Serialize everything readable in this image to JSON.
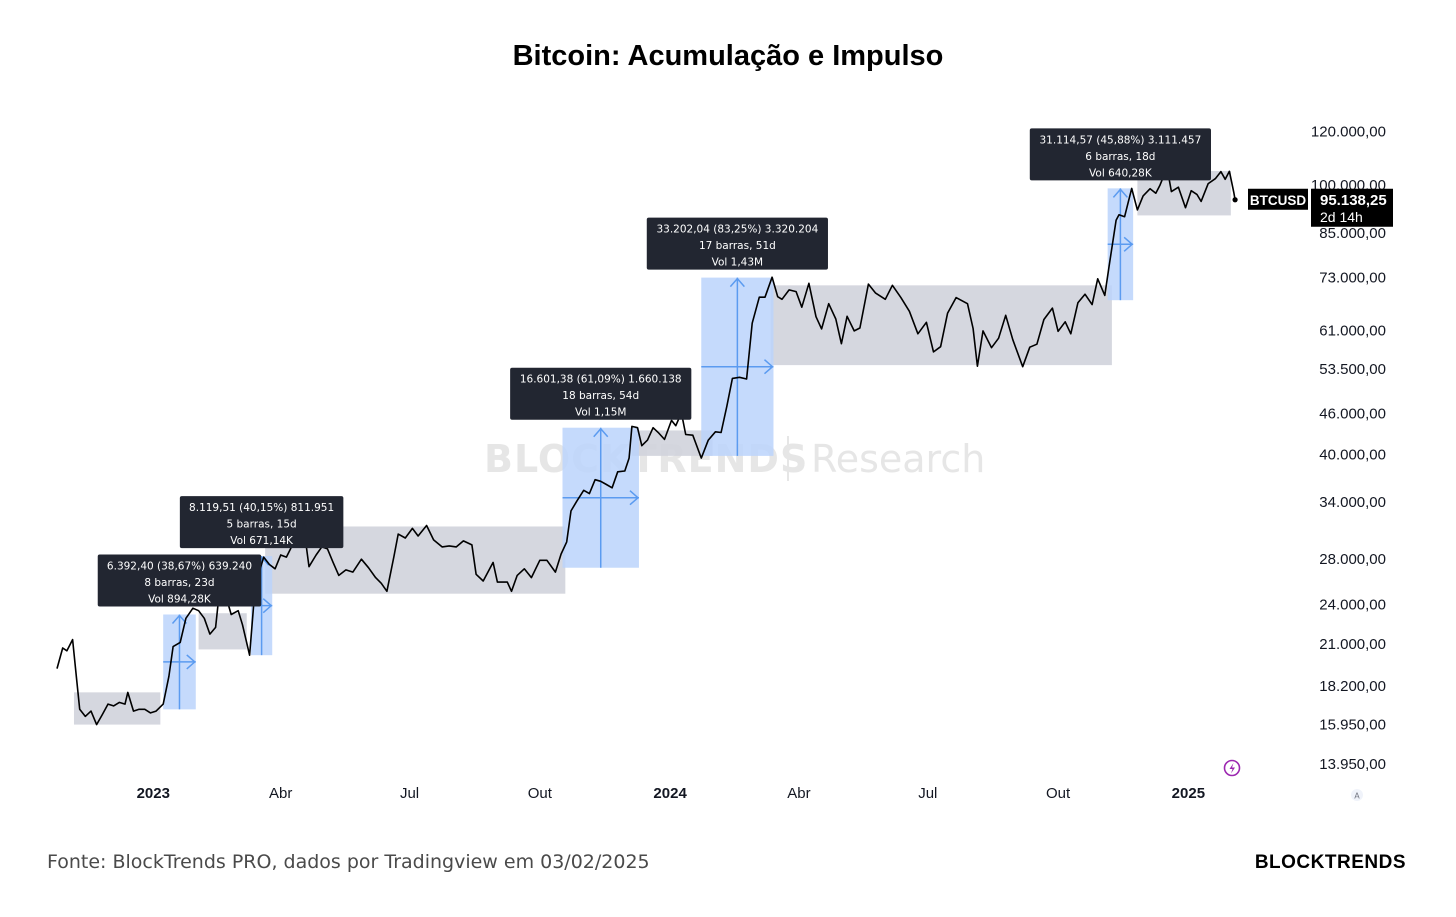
{
  "title": "Bitcoin: Acumulação e Impulso",
  "footer": {
    "source": "Fonte: BlockTrends PRO, dados por Tradingview em 03/02/2025",
    "brand": "BLOCKTRENDS"
  },
  "watermark": {
    "brand": "BLOCKTRENDS",
    "suffix": "Research"
  },
  "colors": {
    "line": "#000000",
    "accumulation_box": "#d1d4dc",
    "impulse_box": "#bbd3fb",
    "impulse_arrow": "#5b9bf0",
    "label_bg": "#222631",
    "price_tag_bg": "#000000"
  },
  "chart_data": {
    "type": "line",
    "scale": "log",
    "symbol": "BTCUSD",
    "last_price": "95.138,25",
    "countdown": "2d 14h",
    "y_ticks": [
      {
        "v": 120000,
        "label": "120.000,00"
      },
      {
        "v": 100000,
        "label": "100.000,00"
      },
      {
        "v": 85000,
        "label": "85.000,00"
      },
      {
        "v": 73000,
        "label": "73.000,00"
      },
      {
        "v": 61000,
        "label": "61.000,00"
      },
      {
        "v": 53500,
        "label": "53.500,00"
      },
      {
        "v": 46000,
        "label": "46.000,00"
      },
      {
        "v": 40000,
        "label": "40.000,00"
      },
      {
        "v": 34000,
        "label": "34.000,00"
      },
      {
        "v": 28000,
        "label": "28.000,00"
      },
      {
        "v": 24000,
        "label": "24.000,00"
      },
      {
        "v": 21000,
        "label": "21.000,00"
      },
      {
        "v": 18200,
        "label": "18.200,00"
      },
      {
        "v": 15950,
        "label": "15.950,00"
      },
      {
        "v": 13950,
        "label": "13.950,00"
      }
    ],
    "x_ticks": [
      {
        "date": "2023-01-01",
        "label": "2023",
        "year": true
      },
      {
        "date": "2023-04-01",
        "label": "Abr",
        "year": false
      },
      {
        "date": "2023-07-01",
        "label": "Jul",
        "year": false
      },
      {
        "date": "2023-10-01",
        "label": "Out",
        "year": false
      },
      {
        "date": "2024-01-01",
        "label": "2024",
        "year": true
      },
      {
        "date": "2024-04-01",
        "label": "Abr",
        "year": false
      },
      {
        "date": "2024-07-01",
        "label": "Jul",
        "year": false
      },
      {
        "date": "2024-10-01",
        "label": "Out",
        "year": false
      },
      {
        "date": "2025-01-01",
        "label": "2025",
        "year": true
      }
    ],
    "x_range": [
      "2022-10-25",
      "2025-02-10"
    ],
    "y_range": [
      13300,
      130000
    ],
    "series": [
      {
        "points": [
          [
            "2022-10-25",
            19300
          ],
          [
            "2022-10-29",
            20700
          ],
          [
            "2022-11-01",
            20500
          ],
          [
            "2022-11-05",
            21300
          ],
          [
            "2022-11-08",
            18500
          ],
          [
            "2022-11-10",
            16800
          ],
          [
            "2022-11-14",
            16400
          ],
          [
            "2022-11-18",
            16700
          ],
          [
            "2022-11-22",
            15950
          ],
          [
            "2022-11-26",
            16500
          ],
          [
            "2022-11-30",
            17100
          ],
          [
            "2022-12-04",
            17000
          ],
          [
            "2022-12-08",
            17200
          ],
          [
            "2022-12-12",
            17100
          ],
          [
            "2022-12-14",
            17800
          ],
          [
            "2022-12-18",
            16700
          ],
          [
            "2022-12-22",
            16800
          ],
          [
            "2022-12-26",
            16800
          ],
          [
            "2022-12-30",
            16600
          ],
          [
            "2023-01-03",
            16700
          ],
          [
            "2023-01-08",
            17100
          ],
          [
            "2023-01-12",
            18800
          ],
          [
            "2023-01-15",
            20800
          ],
          [
            "2023-01-20",
            21100
          ],
          [
            "2023-01-24",
            22900
          ],
          [
            "2023-01-29",
            23700
          ],
          [
            "2023-02-02",
            23500
          ],
          [
            "2023-02-06",
            22900
          ],
          [
            "2023-02-10",
            21700
          ],
          [
            "2023-02-14",
            22200
          ],
          [
            "2023-02-16",
            24300
          ],
          [
            "2023-02-21",
            24800
          ],
          [
            "2023-02-25",
            23200
          ],
          [
            "2023-03-02",
            23500
          ],
          [
            "2023-03-05",
            22400
          ],
          [
            "2023-03-10",
            20200
          ],
          [
            "2023-03-13",
            24100
          ],
          [
            "2023-03-17",
            26900
          ],
          [
            "2023-03-20",
            28200
          ],
          [
            "2023-03-24",
            27500
          ],
          [
            "2023-03-28",
            27100
          ],
          [
            "2023-04-01",
            28400
          ],
          [
            "2023-04-05",
            28200
          ],
          [
            "2023-04-10",
            29600
          ],
          [
            "2023-04-14",
            30500
          ],
          [
            "2023-04-18",
            30400
          ],
          [
            "2023-04-21",
            27300
          ],
          [
            "2023-04-26",
            28400
          ],
          [
            "2023-04-30",
            29200
          ],
          [
            "2023-05-04",
            29000
          ],
          [
            "2023-05-08",
            27700
          ],
          [
            "2023-05-12",
            26500
          ],
          [
            "2023-05-17",
            27000
          ],
          [
            "2023-05-22",
            26800
          ],
          [
            "2023-05-28",
            28000
          ],
          [
            "2023-06-02",
            27200
          ],
          [
            "2023-06-07",
            26300
          ],
          [
            "2023-06-11",
            25800
          ],
          [
            "2023-06-15",
            25100
          ],
          [
            "2023-06-20",
            28300
          ],
          [
            "2023-06-23",
            30500
          ],
          [
            "2023-06-28",
            30100
          ],
          [
            "2023-07-03",
            31100
          ],
          [
            "2023-07-07",
            30300
          ],
          [
            "2023-07-13",
            31400
          ],
          [
            "2023-07-18",
            29900
          ],
          [
            "2023-07-24",
            29200
          ],
          [
            "2023-07-29",
            29300
          ],
          [
            "2023-08-03",
            29200
          ],
          [
            "2023-08-08",
            29800
          ],
          [
            "2023-08-14",
            29400
          ],
          [
            "2023-08-17",
            26600
          ],
          [
            "2023-08-22",
            26000
          ],
          [
            "2023-08-29",
            27700
          ],
          [
            "2023-09-01",
            25900
          ],
          [
            "2023-09-08",
            25900
          ],
          [
            "2023-09-11",
            25100
          ],
          [
            "2023-09-15",
            26500
          ],
          [
            "2023-09-20",
            27100
          ],
          [
            "2023-09-25",
            26300
          ],
          [
            "2023-10-01",
            27900
          ],
          [
            "2023-10-06",
            27900
          ],
          [
            "2023-10-12",
            26800
          ],
          [
            "2023-10-16",
            28500
          ],
          [
            "2023-10-20",
            29700
          ],
          [
            "2023-10-23",
            33000
          ],
          [
            "2023-10-27",
            34100
          ],
          [
            "2023-11-01",
            35400
          ],
          [
            "2023-11-05",
            35000
          ],
          [
            "2023-11-09",
            36700
          ],
          [
            "2023-11-13",
            36500
          ],
          [
            "2023-11-17",
            36100
          ],
          [
            "2023-11-21",
            35700
          ],
          [
            "2023-11-25",
            37700
          ],
          [
            "2023-11-30",
            37800
          ],
          [
            "2023-12-03",
            39500
          ],
          [
            "2023-12-05",
            44000
          ],
          [
            "2023-12-09",
            43800
          ],
          [
            "2023-12-12",
            41200
          ],
          [
            "2023-12-16",
            42000
          ],
          [
            "2023-12-20",
            43800
          ],
          [
            "2023-12-24",
            43000
          ],
          [
            "2023-12-28",
            42100
          ],
          [
            "2024-01-02",
            44900
          ],
          [
            "2024-01-05",
            44100
          ],
          [
            "2024-01-09",
            46100
          ],
          [
            "2024-01-12",
            42800
          ],
          [
            "2024-01-17",
            42700
          ],
          [
            "2024-01-23",
            39500
          ],
          [
            "2024-01-28",
            42000
          ],
          [
            "2024-02-02",
            43200
          ],
          [
            "2024-02-06",
            43100
          ],
          [
            "2024-02-10",
            47100
          ],
          [
            "2024-02-14",
            51800
          ],
          [
            "2024-02-19",
            52000
          ],
          [
            "2024-02-24",
            51700
          ],
          [
            "2024-02-28",
            62500
          ],
          [
            "2024-03-04",
            68300
          ],
          [
            "2024-03-08",
            68300
          ],
          [
            "2024-03-13",
            73100
          ],
          [
            "2024-03-17",
            68400
          ],
          [
            "2024-03-20",
            67800
          ],
          [
            "2024-03-25",
            70000
          ],
          [
            "2024-03-30",
            69600
          ],
          [
            "2024-04-03",
            66000
          ],
          [
            "2024-04-08",
            71600
          ],
          [
            "2024-04-13",
            63900
          ],
          [
            "2024-04-17",
            61300
          ],
          [
            "2024-04-22",
            66800
          ],
          [
            "2024-04-27",
            63400
          ],
          [
            "2024-05-01",
            58300
          ],
          [
            "2024-05-05",
            64000
          ],
          [
            "2024-05-10",
            60900
          ],
          [
            "2024-05-14",
            61500
          ],
          [
            "2024-05-20",
            71400
          ],
          [
            "2024-05-25",
            69300
          ],
          [
            "2024-06-01",
            67800
          ],
          [
            "2024-06-06",
            71100
          ],
          [
            "2024-06-12",
            68200
          ],
          [
            "2024-06-18",
            65100
          ],
          [
            "2024-06-24",
            60300
          ],
          [
            "2024-06-30",
            62700
          ],
          [
            "2024-07-05",
            56700
          ],
          [
            "2024-07-10",
            57700
          ],
          [
            "2024-07-15",
            64700
          ],
          [
            "2024-07-21",
            68200
          ],
          [
            "2024-07-29",
            66800
          ],
          [
            "2024-08-02",
            61400
          ],
          [
            "2024-08-05",
            54000
          ],
          [
            "2024-08-09",
            60900
          ],
          [
            "2024-08-15",
            57500
          ],
          [
            "2024-08-20",
            59400
          ],
          [
            "2024-08-25",
            64200
          ],
          [
            "2024-08-30",
            59100
          ],
          [
            "2024-09-06",
            53900
          ],
          [
            "2024-09-11",
            57600
          ],
          [
            "2024-09-16",
            58200
          ],
          [
            "2024-09-21",
            63300
          ],
          [
            "2024-09-27",
            65800
          ],
          [
            "2024-10-01",
            60800
          ],
          [
            "2024-10-06",
            62800
          ],
          [
            "2024-10-10",
            60300
          ],
          [
            "2024-10-15",
            67000
          ],
          [
            "2024-10-20",
            69000
          ],
          [
            "2024-10-25",
            66600
          ],
          [
            "2024-10-29",
            72700
          ],
          [
            "2024-11-03",
            68700
          ],
          [
            "2024-11-06",
            75900
          ],
          [
            "2024-11-11",
            88700
          ],
          [
            "2024-11-13",
            90400
          ],
          [
            "2024-11-17",
            89800
          ],
          [
            "2024-11-22",
            98900
          ],
          [
            "2024-11-26",
            91900
          ],
          [
            "2024-11-30",
            96400
          ],
          [
            "2024-12-05",
            98800
          ],
          [
            "2024-12-09",
            97300
          ],
          [
            "2024-12-12",
            100000
          ],
          [
            "2024-12-17",
            106100
          ],
          [
            "2024-12-20",
            97800
          ],
          [
            "2024-12-25",
            99300
          ],
          [
            "2024-12-30",
            92600
          ],
          [
            "2025-01-03",
            98100
          ],
          [
            "2025-01-07",
            96900
          ],
          [
            "2025-01-10",
            94600
          ],
          [
            "2025-01-15",
            100500
          ],
          [
            "2025-01-20",
            102200
          ],
          [
            "2025-01-24",
            104700
          ],
          [
            "2025-01-27",
            102000
          ],
          [
            "2025-01-30",
            104800
          ],
          [
            "2025-02-02",
            97700
          ],
          [
            "2025-02-03",
            95138
          ]
        ]
      }
    ],
    "accumulation_zones": [
      {
        "start": "2022-11-06",
        "end": "2023-01-06",
        "low": 15950,
        "high": 17800
      },
      {
        "start": "2023-02-02",
        "end": "2023-03-08",
        "low": 20600,
        "high": 23300
      },
      {
        "start": "2023-03-21",
        "end": "2023-10-19",
        "low": 24900,
        "high": 31300
      },
      {
        "start": "2023-12-05",
        "end": "2024-01-31",
        "low": 39800,
        "high": 43400
      },
      {
        "start": "2024-03-12",
        "end": "2024-11-08",
        "low": 54200,
        "high": 71100
      },
      {
        "start": "2024-11-26",
        "end": "2025-01-31",
        "low": 90200,
        "high": 104900
      }
    ],
    "impulse_moves": [
      {
        "start": "2023-01-08",
        "end": "2023-01-31",
        "low": 16800,
        "high": 23200,
        "label": [
          "6.392,40 (38,67%) 639.240",
          "8 barras, 23d",
          "Vol 894,28K"
        ]
      },
      {
        "start": "2023-03-11",
        "end": "2023-03-26",
        "low": 20200,
        "high": 28300,
        "label": [
          "8.119,51 (40,15%) 811.951",
          "5 barras, 15d",
          "Vol 671,14K"
        ]
      },
      {
        "start": "2023-10-17",
        "end": "2023-12-10",
        "low": 27200,
        "high": 43800,
        "label": [
          "16.601,38 (61,09%) 1.660.138",
          "18 barras, 54d",
          "Vol 1,15M"
        ]
      },
      {
        "start": "2024-01-23",
        "end": "2024-03-14",
        "low": 39800,
        "high": 73000,
        "label": [
          "33.202,04 (83,25%) 3.320.204",
          "17 barras, 51d",
          "Vol 1,43M"
        ]
      },
      {
        "start": "2024-11-05",
        "end": "2024-11-23",
        "low": 67600,
        "high": 98900,
        "label": [
          "31.114,57 (45,88%) 3.111.457",
          "6 barras, 18d",
          "Vol 640,28K"
        ]
      }
    ]
  }
}
